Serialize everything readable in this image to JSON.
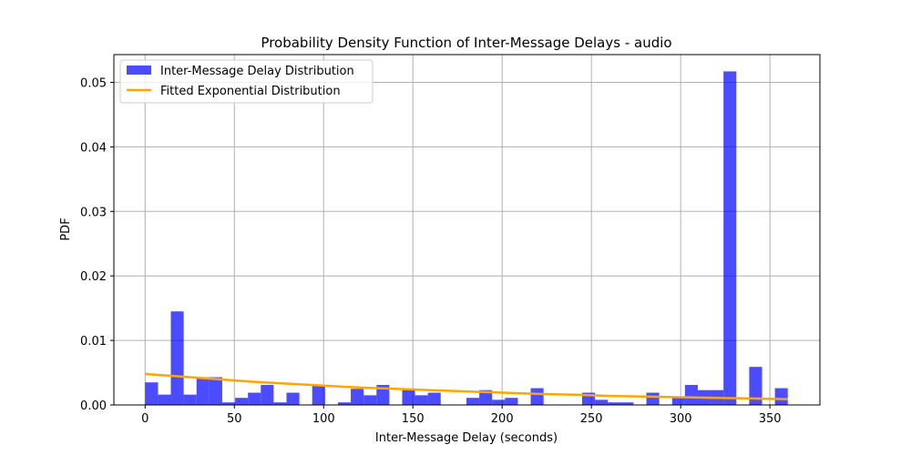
{
  "chart_data": {
    "type": "bar",
    "title": "Probability Density Function of Inter-Message Delays - audio",
    "xlabel": "Inter-Message Delay (seconds)",
    "ylabel": "PDF",
    "xlim": [
      -17.5,
      378
    ],
    "ylim": [
      0,
      0.0543
    ],
    "xticks": [
      0,
      50,
      100,
      150,
      200,
      250,
      300,
      350
    ],
    "xtick_labels": [
      "0",
      "50",
      "100",
      "150",
      "200",
      "250",
      "300",
      "350"
    ],
    "yticks": [
      0,
      0.01,
      0.02,
      0.03,
      0.04,
      0.05
    ],
    "ytick_labels": [
      "0.00",
      "0.01",
      "0.02",
      "0.03",
      "0.04",
      "0.05"
    ],
    "grid": true,
    "legend_position": "top-left",
    "series": [
      {
        "name": "Inter-Message Delay Distribution",
        "kind": "histogram",
        "color": "#0000ff",
        "opacity": 0.7,
        "bin_start": 0,
        "bin_width": 7.2,
        "values": [
          0.0035,
          0.0016,
          0.0145,
          0.0016,
          0.0043,
          0.0043,
          0.0004,
          0.0011,
          0.0019,
          0.0031,
          0.0004,
          0.0019,
          0.0,
          0.0031,
          0.0,
          0.0004,
          0.0025,
          0.0015,
          0.0031,
          0.0,
          0.0023,
          0.0015,
          0.0019,
          0.0,
          0.0,
          0.0011,
          0.0023,
          0.0008,
          0.0011,
          0.0,
          0.0026,
          0.0,
          0.0,
          0.0,
          0.0019,
          0.0008,
          0.0004,
          0.0004,
          0.0,
          0.0019,
          0.0,
          0.0011,
          0.0031,
          0.0023,
          0.0023,
          0.0517,
          0.0,
          0.0059,
          0.0,
          0.0026
        ]
      },
      {
        "name": "Fitted Exponential Distribution",
        "kind": "line",
        "color": "#ffa500",
        "x": [
          0,
          20,
          40,
          60,
          80,
          100,
          120,
          140,
          160,
          180,
          200,
          220,
          240,
          260,
          280,
          300,
          320,
          340,
          360
        ],
        "y": [
          0.0048,
          0.0044,
          0.004,
          0.0036,
          0.0033,
          0.003,
          0.0027,
          0.0025,
          0.0023,
          0.0021,
          0.0019,
          0.0017,
          0.0016,
          0.0014,
          0.0013,
          0.0012,
          0.0011,
          0.001,
          0.0009
        ]
      }
    ]
  }
}
